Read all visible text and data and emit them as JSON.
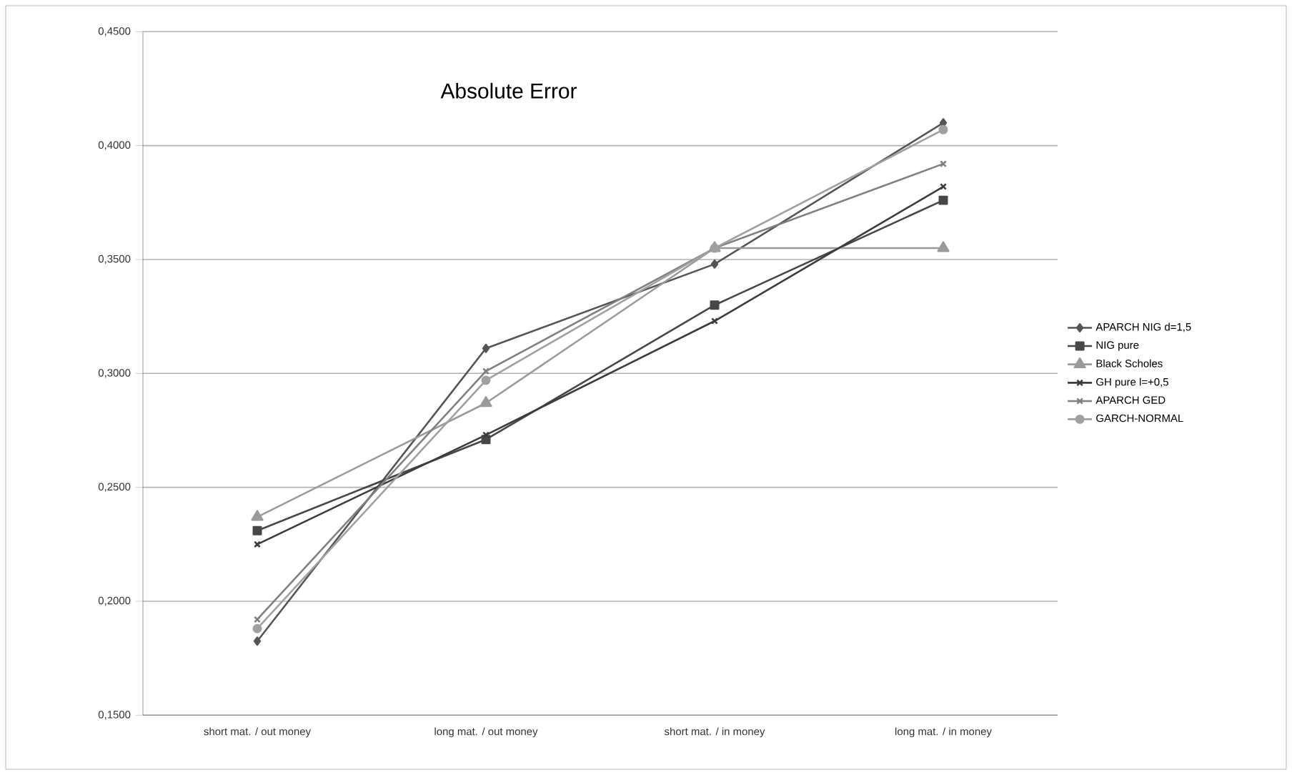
{
  "chart_data": {
    "type": "line",
    "title": "Absolute Error",
    "categories": [
      "short mat. / out money",
      "long mat. / out money",
      "short mat. / in money",
      "long mat. / in money"
    ],
    "series": [
      {
        "name": "APARCH NIG d=1,5",
        "color": "#555555",
        "marker": "diamond",
        "values": [
          0.1825,
          0.311,
          0.348,
          0.41
        ]
      },
      {
        "name": "NIG pure",
        "color": "#474747",
        "marker": "square",
        "values": [
          0.231,
          0.271,
          0.33,
          0.376
        ]
      },
      {
        "name": "Black Scholes",
        "color": "#9a9a9a",
        "marker": "triangle",
        "values": [
          0.237,
          0.287,
          0.355,
          0.355
        ]
      },
      {
        "name": "GH pure l=+0,5",
        "color": "#3c3c3c",
        "marker": "cross",
        "values": [
          0.225,
          0.273,
          0.323,
          0.382
        ]
      },
      {
        "name": "APARCH GED",
        "color": "#808080",
        "marker": "cross",
        "values": [
          0.192,
          0.301,
          0.355,
          0.392
        ]
      },
      {
        "name": "GARCH-NORMAL",
        "color": "#a0a0a0",
        "marker": "circle",
        "values": [
          0.188,
          0.297,
          0.355,
          0.407
        ]
      }
    ],
    "ylim": [
      0.15,
      0.45
    ],
    "yticks": [
      {
        "value": 0.15,
        "label": "0,1500"
      },
      {
        "value": 0.2,
        "label": "0,2000"
      },
      {
        "value": 0.25,
        "label": "0,2500"
      },
      {
        "value": 0.3,
        "label": "0,3000"
      },
      {
        "value": 0.35,
        "label": "0,3500"
      },
      {
        "value": 0.4,
        "label": "0,4000"
      },
      {
        "value": 0.45,
        "label": "0,4500"
      }
    ],
    "grid": "y",
    "legend": "right",
    "line_style": "solid"
  }
}
